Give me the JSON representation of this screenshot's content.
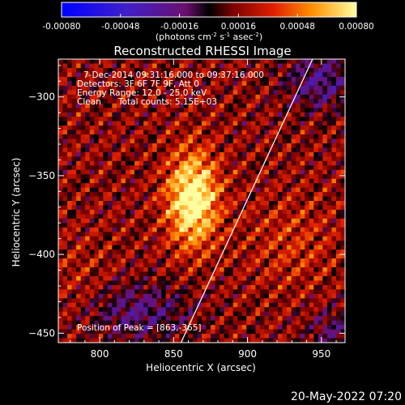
{
  "chart_data": {
    "type": "heatmap",
    "title": "Reconstructed RHESSI Image",
    "xlabel": "Heliocentric X (arcsec)",
    "ylabel": "Heliocentric Y (arcsec)",
    "xlim": [
      772,
      966
    ],
    "ylim": [
      -456,
      -276
    ],
    "x_ticks": [
      800,
      850,
      900,
      950
    ],
    "y_ticks": [
      -300,
      -350,
      -400,
      -450
    ],
    "colorbar": {
      "range": [
        -0.0008,
        0.0008
      ],
      "ticks": [
        "-0.00080",
        "-0.00048",
        "-0.00016",
        "0.00016",
        "0.00048",
        "0.00080"
      ],
      "unit_prefix": "(photons cm",
      "unit_exp1": "-2",
      "unit_mid": " s",
      "unit_exp2": "-1",
      "unit_mid2": " asec",
      "unit_exp3": "-2",
      "unit_suffix": ")"
    },
    "annotations": {
      "time_range": "7-Dec-2014 09:31:16.000 to 09:37:16.000",
      "detectors": "Detectors: 3F 6F 7F 9F, Att 0",
      "energy_range": "Energy Range: 12.0 - 25.0 keV",
      "clean_label": "Clean",
      "total_counts": "Total counts: 5.15E+03",
      "peak_position": "Position of Peak = [863,-365]"
    },
    "peak": {
      "x": 863,
      "y": -365
    },
    "limb_line": [
      [
        855,
        -456
      ],
      [
        944,
        -276
      ]
    ],
    "grid": false
  },
  "footer": {
    "timestamp": "20-May-2022 07:20"
  }
}
